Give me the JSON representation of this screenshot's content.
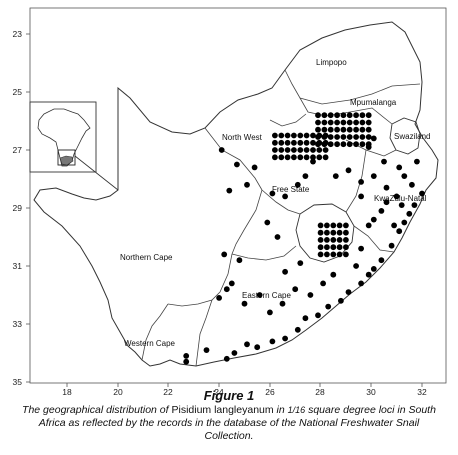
{
  "figure": {
    "title": "Figure 1",
    "caption": {
      "before": "The geographical distribution of ",
      "species": "Pisidium langleyanum",
      "middle": " in ",
      "fraction": "1/16",
      "after": " square degree loci in South Africa as reflected by the records in the database of the National Freshwater Snail Collection."
    }
  },
  "axes": {
    "x_ticks": [
      "18",
      "20",
      "22",
      "24",
      "26",
      "28",
      "30",
      "32"
    ],
    "y_ticks": [
      "23",
      "25",
      "27",
      "29",
      "31",
      "33",
      "35"
    ]
  },
  "provinces": {
    "limpopo": "Limpopo",
    "mpumalanga": "Mpumalanga",
    "north_west": "North West",
    "swaziland": "Swaziland",
    "free_state": "Free State",
    "kwazulu_natal": "KwaZulu-Natal",
    "northern_cape": "Northern Cape",
    "eastern_cape": "Eastern Cape",
    "western_cape": "Western Cape"
  },
  "colors": {
    "marker": "#000000",
    "border": "#333333",
    "frame": "#555555"
  },
  "chart_data": {
    "type": "scatter",
    "xlim": [
      16.5,
      33.5
    ],
    "ylim": [
      35,
      22.5
    ],
    "x_ticks": [
      18,
      20,
      22,
      24,
      26,
      28,
      30,
      32
    ],
    "y_ticks": [
      23,
      25,
      27,
      29,
      31,
      33,
      35
    ],
    "points": [
      [
        22.7,
        34.1
      ],
      [
        22.7,
        34.3
      ],
      [
        23.5,
        33.9
      ],
      [
        24.3,
        34.2
      ],
      [
        24.6,
        34.0
      ],
      [
        25.1,
        33.7
      ],
      [
        25.5,
        33.8
      ],
      [
        26.1,
        33.6
      ],
      [
        26.6,
        33.5
      ],
      [
        27.1,
        33.2
      ],
      [
        27.4,
        32.8
      ],
      [
        27.9,
        32.7
      ],
      [
        28.3,
        32.4
      ],
      [
        28.8,
        32.2
      ],
      [
        29.1,
        31.9
      ],
      [
        29.6,
        31.6
      ],
      [
        29.9,
        31.3
      ],
      [
        30.1,
        31.1
      ],
      [
        30.4,
        30.8
      ],
      [
        30.8,
        30.3
      ],
      [
        31.1,
        29.8
      ],
      [
        31.3,
        29.5
      ],
      [
        31.5,
        29.2
      ],
      [
        31.7,
        28.9
      ],
      [
        32.0,
        28.5
      ],
      [
        24.0,
        32.1
      ],
      [
        24.3,
        31.8
      ],
      [
        24.5,
        31.6
      ],
      [
        25.0,
        32.3
      ],
      [
        25.6,
        32.0
      ],
      [
        26.0,
        32.6
      ],
      [
        26.5,
        32.3
      ],
      [
        27.0,
        31.8
      ],
      [
        27.6,
        32.0
      ],
      [
        28.1,
        31.6
      ],
      [
        28.5,
        31.3
      ],
      [
        26.6,
        31.2
      ],
      [
        27.2,
        30.9
      ],
      [
        24.8,
        30.8
      ],
      [
        24.2,
        30.6
      ],
      [
        25.9,
        29.5
      ],
      [
        26.3,
        30.0
      ],
      [
        29.4,
        31.0
      ],
      [
        29.6,
        30.4
      ],
      [
        29.9,
        29.6
      ],
      [
        30.1,
        29.4
      ],
      [
        30.4,
        29.1
      ],
      [
        30.6,
        28.8
      ],
      [
        30.9,
        29.6
      ],
      [
        31.0,
        28.6
      ],
      [
        30.6,
        28.3
      ],
      [
        31.2,
        28.9
      ],
      [
        29.6,
        28.6
      ],
      [
        29.6,
        28.1
      ],
      [
        30.1,
        27.9
      ],
      [
        30.5,
        27.4
      ],
      [
        31.1,
        27.6
      ],
      [
        31.3,
        27.9
      ],
      [
        31.6,
        28.2
      ],
      [
        31.8,
        27.4
      ],
      [
        29.9,
        26.9
      ],
      [
        30.1,
        26.6
      ],
      [
        24.4,
        28.4
      ],
      [
        24.7,
        27.5
      ],
      [
        25.1,
        28.2
      ],
      [
        25.4,
        27.6
      ],
      [
        26.1,
        28.5
      ],
      [
        26.6,
        28.6
      ],
      [
        27.1,
        28.2
      ],
      [
        27.4,
        27.9
      ],
      [
        27.7,
        27.4
      ],
      [
        28.6,
        27.9
      ],
      [
        29.1,
        27.7
      ],
      [
        24.1,
        27.0
      ]
    ]
  }
}
